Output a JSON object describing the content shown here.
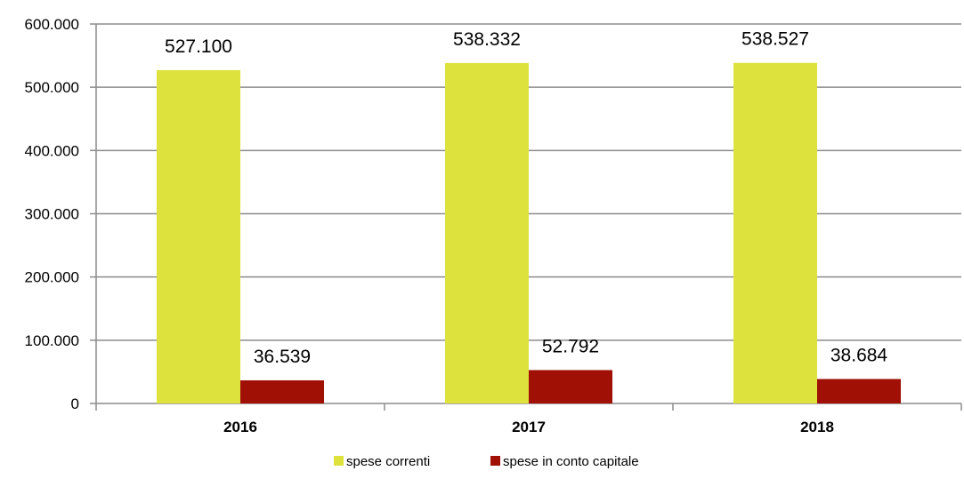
{
  "chart_data": {
    "type": "bar",
    "categories": [
      "2016",
      "2017",
      "2018"
    ],
    "series": [
      {
        "name": "spese correnti",
        "values": [
          527100,
          538332,
          538527
        ],
        "labels": [
          "527.100",
          "538.332",
          "538.527"
        ],
        "color": "#dde33c"
      },
      {
        "name": "spese in conto capitale",
        "values": [
          36539,
          52792,
          38684
        ],
        "labels": [
          "36.539",
          "52.792",
          "38.684"
        ],
        "color": "#a01005"
      }
    ],
    "ylim": [
      0,
      600000
    ],
    "yticks": [
      0,
      100000,
      200000,
      300000,
      400000,
      500000,
      600000
    ],
    "ytick_labels": [
      "0",
      "100.000",
      "200.000",
      "300.000",
      "400.000",
      "500.000",
      "600.000"
    ],
    "title": "",
    "xlabel": "",
    "ylabel": "",
    "grid": true,
    "legend_position": "bottom"
  }
}
